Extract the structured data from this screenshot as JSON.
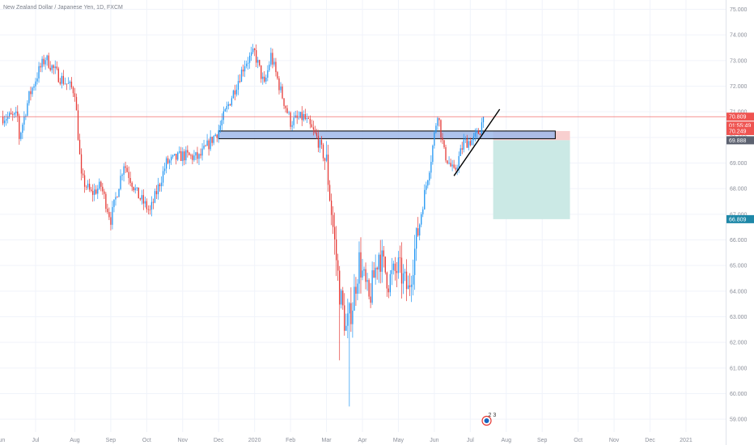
{
  "chart_data": {
    "type": "candlestick",
    "title": "New Zealand Dollar / Japanese Yen, 1D, FXCM",
    "y_axis": {
      "side": "right",
      "range": [
        58.5,
        75.3
      ],
      "ticks": [
        "59.000",
        "60.000",
        "61.000",
        "62.000",
        "63.000",
        "64.000",
        "65.000",
        "66.000",
        "67.000",
        "68.000",
        "69.000",
        "70.000",
        "71.000",
        "72.000",
        "73.000",
        "74.000",
        "75.000"
      ],
      "tick_values": [
        59,
        60,
        61,
        62,
        63,
        64,
        65,
        66,
        67,
        68,
        69,
        70,
        71,
        72,
        73,
        74,
        75
      ]
    },
    "x_axis": {
      "ticks": [
        {
          "label": "Jul",
          "index": 0
        },
        {
          "label": "Aug",
          "index": 24
        },
        {
          "label": "Sep",
          "index": 46
        },
        {
          "label": "Oct",
          "index": 68
        },
        {
          "label": "Nov",
          "index": 90
        },
        {
          "label": "Dec",
          "index": 112
        },
        {
          "label": "2020",
          "index": 134
        },
        {
          "label": "Feb",
          "index": 156
        },
        {
          "label": "Mar",
          "index": 178
        },
        {
          "label": "Apr",
          "index": 200
        },
        {
          "label": "May",
          "index": 222
        },
        {
          "label": "Jun",
          "index": 244
        },
        {
          "label": "Jul",
          "index": 266
        },
        {
          "label": "Aug",
          "index": 288
        },
        {
          "label": "Sep",
          "index": 310
        },
        {
          "label": "Oct",
          "index": 332
        },
        {
          "label": "Nov",
          "index": 354
        },
        {
          "label": "Dec",
          "index": 376
        },
        {
          "label": "2021",
          "index": 398
        }
      ],
      "left_partial_label": "Jun"
    },
    "colors": {
      "up": "#2196f3",
      "down": "#e53935",
      "grid": "#f0f3fa",
      "price_line": "#ef5350",
      "zone_fill": "#9fb9ea",
      "zone_border": "#000000",
      "stop_fill": "#f8cfcf",
      "target_fill": "#cbe9e5",
      "trendline": "#000000"
    },
    "grid": true,
    "anchors": [
      [
        -10,
        70.0
      ],
      [
        -4,
        71.6
      ],
      [
        2,
        72.6
      ],
      [
        6,
        73.1
      ],
      [
        14,
        72.4
      ],
      [
        24,
        71.8
      ],
      [
        28,
        68.4
      ],
      [
        34,
        67.8
      ],
      [
        40,
        68.1
      ],
      [
        46,
        66.8
      ],
      [
        54,
        69.0
      ],
      [
        62,
        67.8
      ],
      [
        70,
        67.1
      ],
      [
        80,
        69.0
      ],
      [
        90,
        69.3
      ],
      [
        100,
        69.2
      ],
      [
        112,
        70.3
      ],
      [
        120,
        71.6
      ],
      [
        128,
        72.9
      ],
      [
        134,
        73.3
      ],
      [
        140,
        72.0
      ],
      [
        144,
        73.2
      ],
      [
        150,
        71.8
      ],
      [
        156,
        70.6
      ],
      [
        164,
        70.8
      ],
      [
        172,
        70.0
      ],
      [
        178,
        69.0
      ],
      [
        182,
        66.5
      ],
      [
        186,
        64.0
      ],
      [
        190,
        62.5
      ],
      [
        194,
        63.5
      ],
      [
        198,
        65.2
      ],
      [
        204,
        63.6
      ],
      [
        210,
        65.5
      ],
      [
        216,
        64.4
      ],
      [
        222,
        64.9
      ],
      [
        228,
        64.0
      ],
      [
        232,
        65.6
      ],
      [
        238,
        67.8
      ],
      [
        242,
        69.2
      ],
      [
        246,
        71.0
      ],
      [
        250,
        69.4
      ],
      [
        256,
        68.6
      ],
      [
        262,
        69.8
      ],
      [
        268,
        69.9
      ],
      [
        272,
        70.3
      ],
      [
        274,
        70.8
      ]
    ],
    "candle_count": 275,
    "candle_seed": 7,
    "last_price": "70.809",
    "countdown": "01:55:49",
    "price_tags": [
      {
        "label": "70.809",
        "value": 70.809,
        "color": "#ef5350"
      },
      {
        "label": "01:55:49",
        "value": 70.809,
        "color": "#ef5350",
        "below": true
      },
      {
        "label": "70.249",
        "value": 70.249,
        "color": "#ef5350"
      },
      {
        "label": "69.888",
        "value": 69.888,
        "color": "#5d6270"
      },
      {
        "label": "66.809",
        "value": 66.809,
        "color": "#1e88a8"
      }
    ],
    "annotations": {
      "zone": {
        "from_index": 112,
        "to_index": 318,
        "top": 70.25,
        "bottom": 69.95
      },
      "trendline": {
        "from": [
          256,
          68.5
        ],
        "to": [
          284,
          71.1
        ]
      },
      "short_position": {
        "from_index": 280,
        "to_index": 327,
        "entry": 69.888,
        "stop": 70.249,
        "target": 66.809
      },
      "event_badge": {
        "index": 276,
        "text": "2 3"
      }
    }
  }
}
